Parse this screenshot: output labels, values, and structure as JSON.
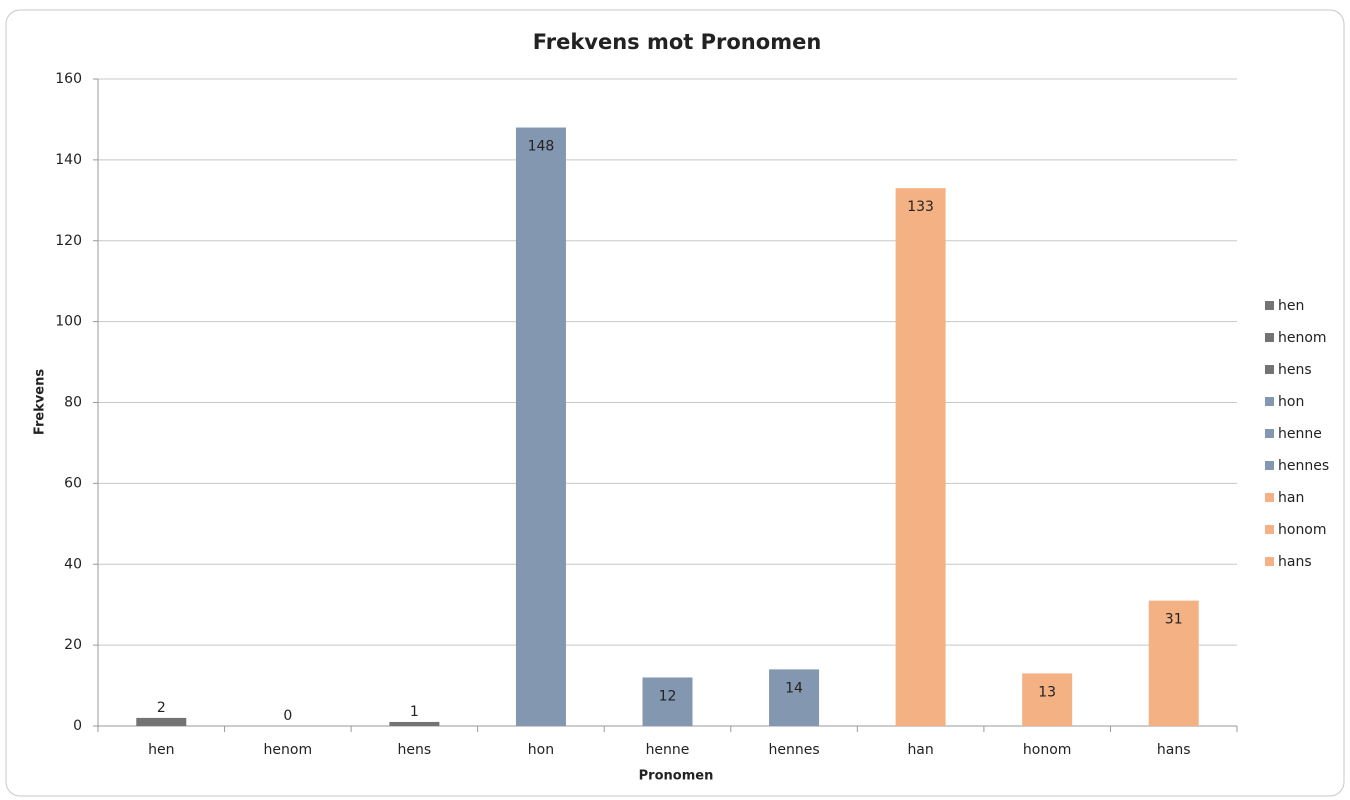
{
  "chart_data": {
    "type": "bar",
    "title": "Frekvens mot Pronomen",
    "x_label": "Pronomen",
    "y_label": "Frekvens",
    "categories": [
      "hen",
      "henom",
      "hens",
      "hon",
      "henne",
      "hennes",
      "han",
      "honom",
      "hans"
    ],
    "values": [
      2,
      0,
      1,
      148,
      12,
      14,
      133,
      13,
      31
    ],
    "colors": [
      "#737373",
      "#737373",
      "#737373",
      "#8497b0",
      "#8497b0",
      "#8497b0",
      "#f4b183",
      "#f4b183",
      "#f4b183"
    ],
    "ylim": [
      0,
      160
    ],
    "yticks": [
      0,
      20,
      40,
      60,
      80,
      100,
      120,
      140,
      160
    ],
    "grid": true,
    "legend": "right",
    "data_labels": true
  }
}
